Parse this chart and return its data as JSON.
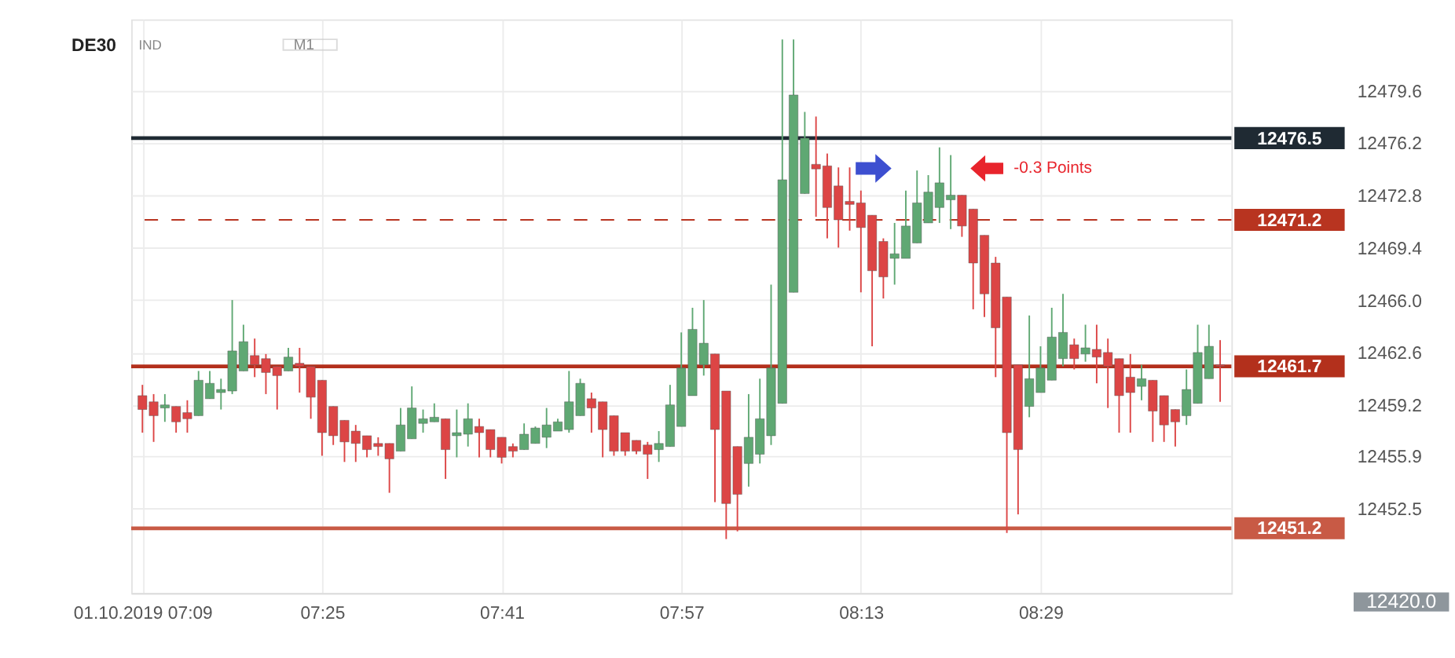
{
  "chart_data": {
    "type": "candlestick",
    "title": "DE30",
    "colors": [
      "#dc4545",
      "#dc4545",
      "#5fa873",
      "#dc4545",
      "#dc4545",
      "#5fa873",
      "#5fa873",
      "#5fa873",
      "#5fa873",
      "#5fa873",
      "#dc4545",
      "#dc4545",
      "#dc4545",
      "#5fa873",
      "#dc4545",
      "#dc4545",
      "#dc4545",
      "#dc4545",
      "#dc4545",
      "#dc4545",
      "#dc4545",
      "#dc4545",
      "#dc4545",
      "#5fa873",
      "#5fa873",
      "#5fa873",
      "#5fa873",
      "#dc4545",
      "#5fa873",
      "#5fa873",
      "#dc4545",
      "#dc4545",
      "#dc4545",
      "#dc4545",
      "#5fa873",
      "#5fa873",
      "#5fa873",
      "#5fa873",
      "#5fa873",
      "#5fa873",
      "#dc4545",
      "#dc4545",
      "#dc4545",
      "#dc4545",
      "#dc4545",
      "#dc4545",
      "#5fa873",
      "#5fa873",
      "#5fa873",
      "#5fa873",
      "#5fa873",
      "#dc4545",
      "#dc4545",
      "#dc4545",
      "#5fa873",
      "#5fa873",
      "#5fa873",
      "#5fa873",
      "#5fa873",
      "#5fa873",
      "#dc4545",
      "#dc4545",
      "#dc4545",
      "#dc4545",
      "#dc4545",
      "#dc4545",
      "#dc4545",
      "#5fa873",
      "#5fa873",
      "#5fa873",
      "#5fa873",
      "#5fa873",
      "#5fa873",
      "#dc4545",
      "#dc4545",
      "#dc4545",
      "#dc4545",
      "#dc4545",
      "#dc4545",
      "#5fa873",
      "#5fa873",
      "#5fa873",
      "#5fa873",
      "#dc4545",
      "#5fa873",
      "#dc4545",
      "#dc4545",
      "#dc4545",
      "#dc4545",
      "#5fa873",
      "#dc4545",
      "#dc4545",
      "#dc4545",
      "#5fa873",
      "#5fa873",
      "#5fa873",
      "#dc4545"
    ],
    "x": [
      "2019-10-01T07:09",
      "2019-10-01T07:10",
      "2019-10-01T07:11",
      "2019-10-01T07:12",
      "2019-10-01T07:13",
      "2019-10-01T07:14",
      "2019-10-01T07:15",
      "2019-10-01T07:16",
      "2019-10-01T07:17",
      "2019-10-01T07:18",
      "2019-10-01T07:19",
      "2019-10-01T07:20",
      "2019-10-01T07:21",
      "2019-10-01T07:22",
      "2019-10-01T07:23",
      "2019-10-01T07:24",
      "2019-10-01T07:25",
      "2019-10-01T07:26",
      "2019-10-01T07:27",
      "2019-10-01T07:28",
      "2019-10-01T07:29",
      "2019-10-01T07:30",
      "2019-10-01T07:31",
      "2019-10-01T07:32",
      "2019-10-01T07:33",
      "2019-10-01T07:34",
      "2019-10-01T07:35",
      "2019-10-01T07:36",
      "2019-10-01T07:37",
      "2019-10-01T07:38",
      "2019-10-01T07:39",
      "2019-10-01T07:40",
      "2019-10-01T07:41",
      "2019-10-01T07:42",
      "2019-10-01T07:43",
      "2019-10-01T07:44",
      "2019-10-01T07:45",
      "2019-10-01T07:46",
      "2019-10-01T07:47",
      "2019-10-01T07:48",
      "2019-10-01T07:49",
      "2019-10-01T07:50",
      "2019-10-01T07:51",
      "2019-10-01T07:52",
      "2019-10-01T07:53",
      "2019-10-01T07:54",
      "2019-10-01T07:55",
      "2019-10-01T07:56",
      "2019-10-01T07:57",
      "2019-10-01T07:58",
      "2019-10-01T07:59",
      "2019-10-01T08:00",
      "2019-10-01T08:01",
      "2019-10-01T08:02",
      "2019-10-01T08:03",
      "2019-10-01T08:04",
      "2019-10-01T08:05",
      "2019-10-01T08:06",
      "2019-10-01T08:07",
      "2019-10-01T08:08",
      "2019-10-01T08:09",
      "2019-10-01T08:10",
      "2019-10-01T08:11",
      "2019-10-01T08:12",
      "2019-10-01T08:13",
      "2019-10-01T08:14",
      "2019-10-01T08:15",
      "2019-10-01T08:16",
      "2019-10-01T08:17",
      "2019-10-01T08:18",
      "2019-10-01T08:19",
      "2019-10-01T08:20",
      "2019-10-01T08:21",
      "2019-10-01T08:22",
      "2019-10-01T08:23",
      "2019-10-01T08:24",
      "2019-10-01T08:25",
      "2019-10-01T08:26",
      "2019-10-01T08:27",
      "2019-10-01T08:28",
      "2019-10-01T08:29",
      "2019-10-01T08:30",
      "2019-10-01T08:31",
      "2019-10-01T08:32",
      "2019-10-01T08:33",
      "2019-10-01T08:34",
      "2019-10-01T08:35",
      "2019-10-01T08:36",
      "2019-10-01T08:37",
      "2019-10-01T08:38",
      "2019-10-01T08:39",
      "2019-10-01T08:40",
      "2019-10-01T08:41",
      "2019-10-01T08:42",
      "2019-10-01T08:43",
      "2019-10-01T08:44",
      "2019-10-01T08:45"
    ],
    "ohlc": [
      [
        12459.8,
        12460.5,
        12457.4,
        12458.9
      ],
      [
        12459.4,
        12459.9,
        12456.8,
        12458.5
      ],
      [
        12459.0,
        12459.9,
        12458.1,
        12459.2
      ],
      [
        12459.1,
        12459.1,
        12457.4,
        12458.1
      ],
      [
        12458.7,
        12459.5,
        12457.4,
        12458.3
      ],
      [
        12458.5,
        12461.4,
        12458.5,
        12460.8
      ],
      [
        12459.6,
        12461.4,
        12459.6,
        12460.6
      ],
      [
        12460.0,
        12460.9,
        12458.9,
        12460.2
      ],
      [
        12460.1,
        12466.0,
        12459.9,
        12462.7
      ],
      [
        12461.4,
        12464.4,
        12461.4,
        12463.3
      ],
      [
        12462.4,
        12463.5,
        12461.0,
        12461.8
      ],
      [
        12462.2,
        12462.5,
        12459.9,
        12461.3
      ],
      [
        12461.7,
        12461.7,
        12458.9,
        12461.1
      ],
      [
        12461.4,
        12462.9,
        12461.4,
        12462.3
      ],
      [
        12461.9,
        12462.9,
        12460.0,
        12461.7
      ],
      [
        12461.7,
        12461.7,
        12458.3,
        12459.7
      ],
      [
        12460.8,
        12460.8,
        12455.9,
        12457.4
      ],
      [
        12459.1,
        12459.1,
        12456.6,
        12457.2
      ],
      [
        12458.2,
        12458.2,
        12455.5,
        12456.8
      ],
      [
        12457.5,
        12457.9,
        12455.5,
        12456.7
      ],
      [
        12457.2,
        12457.2,
        12455.8,
        12456.3
      ],
      [
        12456.7,
        12457.1,
        12455.9,
        12456.5
      ],
      [
        12456.7,
        12456.7,
        12453.5,
        12455.7
      ],
      [
        12456.2,
        12459.0,
        12456.2,
        12457.9
      ],
      [
        12457.0,
        12460.4,
        12457.0,
        12459.0
      ],
      [
        12458.0,
        12458.9,
        12457.4,
        12458.3
      ],
      [
        12458.1,
        12459.3,
        12458.1,
        12458.4
      ],
      [
        12458.3,
        12458.3,
        12454.4,
        12456.3
      ],
      [
        12457.2,
        12458.9,
        12455.8,
        12457.4
      ],
      [
        12457.3,
        12459.3,
        12456.5,
        12458.3
      ],
      [
        12457.8,
        12458.3,
        12455.8,
        12457.4
      ],
      [
        12457.6,
        12457.6,
        12455.8,
        12456.3
      ],
      [
        12457.1,
        12457.1,
        12455.4,
        12455.8
      ],
      [
        12456.5,
        12456.7,
        12455.8,
        12456.2
      ],
      [
        12456.3,
        12458.0,
        12456.3,
        12457.3
      ],
      [
        12456.7,
        12457.8,
        12456.7,
        12457.7
      ],
      [
        12457.1,
        12459.0,
        12456.4,
        12457.9
      ],
      [
        12457.5,
        12458.3,
        12457.5,
        12458.1
      ],
      [
        12457.6,
        12461.4,
        12457.4,
        12459.4
      ],
      [
        12458.5,
        12460.9,
        12458.5,
        12460.6
      ],
      [
        12459.6,
        12460.0,
        12457.4,
        12459.0
      ],
      [
        12459.4,
        12459.4,
        12455.8,
        12457.6
      ],
      [
        12458.5,
        12458.5,
        12455.9,
        12456.2
      ],
      [
        12457.4,
        12457.4,
        12455.9,
        12456.2
      ],
      [
        12456.9,
        12456.9,
        12456.0,
        12456.2
      ],
      [
        12456.6,
        12456.8,
        12454.4,
        12456.0
      ],
      [
        12456.3,
        12457.5,
        12455.5,
        12456.7
      ],
      [
        12456.5,
        12460.5,
        12456.5,
        12459.2
      ],
      [
        12457.8,
        12463.9,
        12457.8,
        12461.6
      ],
      [
        12459.8,
        12465.5,
        12459.8,
        12464.1
      ],
      [
        12461.8,
        12466.0,
        12461.1,
        12463.2
      ],
      [
        12462.5,
        12462.5,
        12452.9,
        12457.6
      ],
      [
        12460.1,
        12460.1,
        12450.5,
        12452.8
      ],
      [
        12456.5,
        12456.5,
        12451.0,
        12453.4
      ],
      [
        12455.4,
        12459.9,
        12453.9,
        12457.1
      ],
      [
        12456.0,
        12460.9,
        12455.4,
        12458.3
      ],
      [
        12457.2,
        12467.0,
        12456.6,
        12461.6
      ],
      [
        12459.3,
        12482.9,
        12459.3,
        12473.8
      ],
      [
        12466.5,
        12482.9,
        12466.5,
        12479.3
      ],
      [
        12472.9,
        12478.2,
        12472.9,
        12476.5
      ],
      [
        12474.8,
        12477.9,
        12471.4,
        12474.5
      ],
      [
        12474.7,
        12475.5,
        12470.0,
        12472.0
      ],
      [
        12473.4,
        12474.6,
        12469.4,
        12471.2
      ],
      [
        12472.4,
        12474.6,
        12470.5,
        12472.2
      ],
      [
        12472.3,
        12473.1,
        12466.5,
        12470.7
      ],
      [
        12471.5,
        12471.5,
        12463.0,
        12467.9
      ],
      [
        12469.8,
        12470.0,
        12466.1,
        12467.5
      ],
      [
        12468.7,
        12471.0,
        12467.0,
        12469.0
      ],
      [
        12468.7,
        12473.1,
        12468.7,
        12470.8
      ],
      [
        12469.7,
        12474.4,
        12469.7,
        12472.3
      ],
      [
        12471.0,
        12474.1,
        12471.0,
        12473.0
      ],
      [
        12472.0,
        12475.9,
        12471.0,
        12473.6
      ],
      [
        12472.5,
        12475.4,
        12470.6,
        12472.8
      ],
      [
        12472.8,
        12472.8,
        12470.1,
        12470.8
      ],
      [
        12471.9,
        12471.9,
        12465.4,
        12468.4
      ],
      [
        12470.2,
        12470.2,
        12464.9,
        12466.4
      ],
      [
        12468.4,
        12468.8,
        12461.0,
        12464.2
      ],
      [
        12466.2,
        12466.2,
        12450.9,
        12457.4
      ],
      [
        12461.8,
        12461.8,
        12452.1,
        12456.3
      ],
      [
        12459.1,
        12465.0,
        12458.4,
        12460.9
      ],
      [
        12460.0,
        12463.0,
        12460.0,
        12461.6
      ],
      [
        12460.8,
        12465.5,
        12460.8,
        12463.6
      ],
      [
        12462.2,
        12466.4,
        12461.7,
        12463.9
      ],
      [
        12463.1,
        12463.5,
        12461.5,
        12462.2
      ],
      [
        12462.5,
        12464.4,
        12462.0,
        12462.9
      ],
      [
        12462.8,
        12464.4,
        12460.6,
        12462.3
      ],
      [
        12462.6,
        12463.5,
        12459.0,
        12461.7
      ],
      [
        12462.2,
        12462.2,
        12457.4,
        12459.8
      ],
      [
        12461.0,
        12462.5,
        12457.4,
        12460.0
      ],
      [
        12460.4,
        12461.8,
        12459.5,
        12460.9
      ],
      [
        12460.8,
        12460.8,
        12456.8,
        12458.8
      ],
      [
        12459.8,
        12459.8,
        12456.8,
        12457.9
      ],
      [
        12458.9,
        12458.9,
        12456.5,
        12458.1
      ],
      [
        12458.5,
        12461.5,
        12457.9,
        12460.2
      ],
      [
        12459.3,
        12464.4,
        12459.3,
        12462.6
      ],
      [
        12460.9,
        12464.4,
        12460.9,
        12463.0
      ],
      [
        12461.8,
        12463.4,
        12459.4,
        12461.7
      ]
    ],
    "xlim": [
      "2019-10-01T07:08",
      "2019-10-01T08:46"
    ],
    "xticks": [
      {
        "value": "2019-10-01T07:09",
        "label": "01.10.2019 07:09"
      },
      {
        "value": "2019-10-01T07:25",
        "label": "07:25"
      },
      {
        "value": "2019-10-01T07:41",
        "label": "07:41"
      },
      {
        "value": "2019-10-01T07:57",
        "label": "07:57"
      },
      {
        "value": "2019-10-01T08:13",
        "label": "08:13"
      },
      {
        "value": "2019-10-01T08:29",
        "label": "08:29"
      }
    ],
    "ylim": [
      12447.0,
      12484.2
    ],
    "yticks": [
      12452.5,
      12455.9,
      12459.2,
      12462.6,
      {
        "value": 12466.0,
        "label": "12466.0"
      },
      12469.4,
      12472.8,
      12476.2,
      12479.6
    ],
    "grid": true,
    "ref_lines": [
      {
        "axis": "y",
        "value": 12476.5,
        "label": "12476.5",
        "color": "#1f2a33"
      },
      {
        "axis": "y",
        "value": 12471.2,
        "label": "12471.2",
        "color": "#b83420",
        "line_style": "dashed"
      },
      {
        "axis": "y",
        "value": 12461.7,
        "label": "12461.7",
        "color": "#b3301c"
      },
      {
        "axis": "y",
        "value": 12451.2,
        "label": "12451.2",
        "color": "#c85a45"
      }
    ],
    "annotations": [
      "IND",
      "M1",
      "-0.3 Points",
      "12420.0"
    ]
  }
}
